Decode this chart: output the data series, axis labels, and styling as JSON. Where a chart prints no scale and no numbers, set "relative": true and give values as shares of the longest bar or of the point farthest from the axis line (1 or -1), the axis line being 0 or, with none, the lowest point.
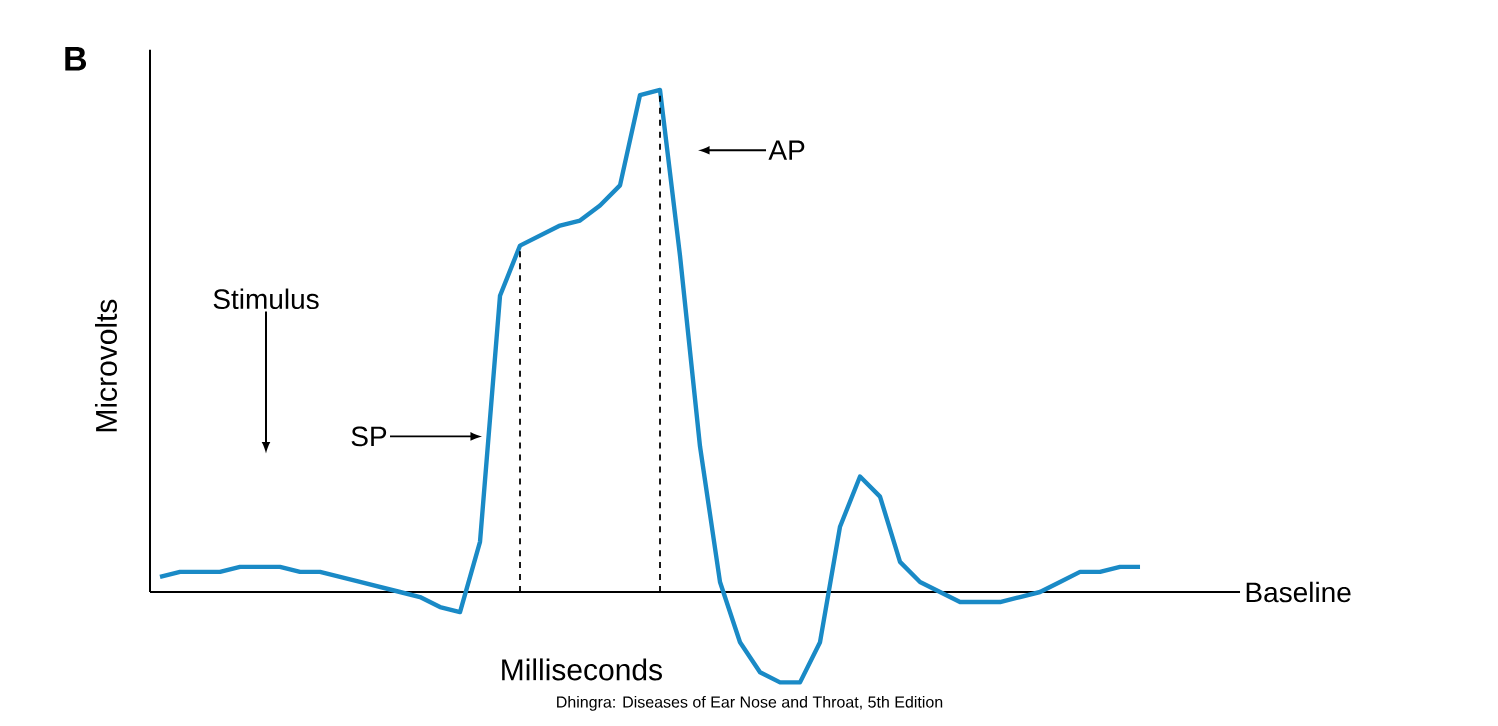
{
  "chart_data": {
    "type": "line",
    "title": "B",
    "xlabel": "Milliseconds",
    "ylabel": "Microvolts",
    "relative": true,
    "marker": "none",
    "line_style": "solid",
    "categories": [
      null,
      null,
      null,
      null,
      null,
      null,
      null,
      null,
      null,
      null,
      null,
      null,
      null,
      null,
      null,
      null,
      null,
      null,
      null,
      null,
      null,
      null,
      null,
      null,
      null,
      null,
      null,
      null,
      null,
      null,
      null,
      null,
      null,
      null,
      null,
      null,
      null,
      null,
      null,
      null,
      null,
      null,
      null,
      null,
      null,
      null,
      null,
      null,
      null,
      null
    ],
    "series": [
      {
        "color": "#1a8ac6",
        "values": [
          0.03,
          0.04,
          0.04,
          0.04,
          0.05,
          0.05,
          0.05,
          0.04,
          0.04,
          0.03,
          0.02,
          0.01,
          0.0,
          -0.01,
          -0.03,
          -0.04,
          0.1,
          0.59,
          0.69,
          0.71,
          0.73,
          0.74,
          0.77,
          0.81,
          0.99,
          1.0,
          0.67,
          0.29,
          0.02,
          -0.1,
          -0.16,
          -0.18,
          -0.18,
          -0.1,
          0.13,
          0.23,
          0.19,
          0.06,
          0.02,
          0.0,
          -0.02,
          -0.02,
          -0.02,
          -0.01,
          0.0,
          0.02,
          0.04,
          0.04,
          0.05,
          0.05
        ]
      }
    ],
    "annotations": [
      "Stimulus",
      "SP",
      "AP",
      "Baseline",
      "Dhingra: Diseases of Ear Nose and Throat, 5th Edition"
    ]
  }
}
